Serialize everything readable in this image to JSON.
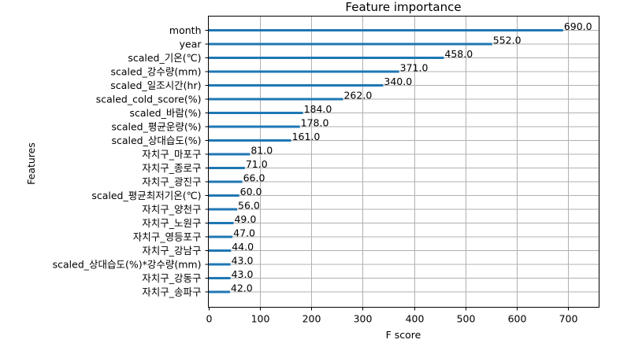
{
  "chart_data": {
    "type": "bar",
    "orientation": "horizontal",
    "title": "Feature importance",
    "xlabel": "F score",
    "ylabel": "Features",
    "xlim": [
      0,
      760
    ],
    "xticks": [
      0,
      100,
      200,
      300,
      400,
      500,
      600,
      700
    ],
    "grid": true,
    "bar_color": "#1f77b4",
    "categories": [
      "month",
      "year",
      "scaled_기온(℃)",
      "scaled_강수량(mm)",
      "scaled_일조시간(hr)",
      "scaled_cold_score(%)",
      "scaled_바람(%)",
      "scaled_평균운량(%)",
      "scaled_상대습도(%)",
      "자치구_마포구",
      "자치구_종로구",
      "자치구_광진구",
      "scaled_평균최저기온(℃)",
      "자치구_양천구",
      "자치구_노원구",
      "자치구_영등포구",
      "자치구_강남구",
      "scaled_상대습도(%)*강수량(mm)",
      "자치구_강동구",
      "자치구_송파구"
    ],
    "values": [
      690,
      552,
      458,
      371,
      340,
      262,
      184,
      178,
      161,
      81,
      71,
      66,
      60,
      56,
      49,
      47,
      44,
      43,
      43,
      42
    ],
    "value_labels": [
      "690.0",
      "552.0",
      "458.0",
      "371.0",
      "340.0",
      "262.0",
      "184.0",
      "178.0",
      "161.0",
      "81.0",
      "71.0",
      "66.0",
      "60.0",
      "56.0",
      "49.0",
      "47.0",
      "44.0",
      "43.0",
      "43.0",
      "42.0"
    ]
  }
}
